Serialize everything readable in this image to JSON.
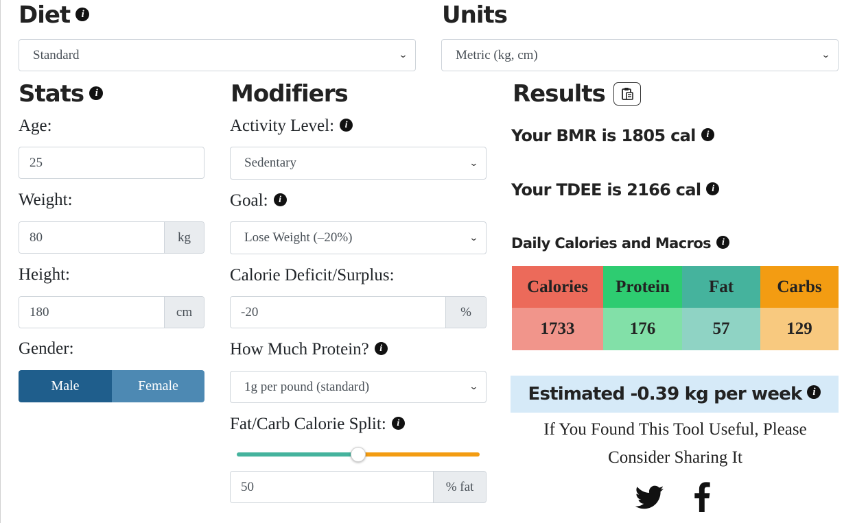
{
  "diet": {
    "title": "Diet",
    "select_value": "Standard"
  },
  "units": {
    "title": "Units",
    "select_value": "Metric (kg, cm)"
  },
  "stats": {
    "title": "Stats",
    "age_label": "Age:",
    "age_value": "25",
    "weight_label": "Weight:",
    "weight_value": "80",
    "weight_unit": "kg",
    "height_label": "Height:",
    "height_value": "180",
    "height_unit": "cm",
    "gender_label": "Gender:",
    "gender_options": [
      "Male",
      "Female"
    ],
    "gender_selected": "Male"
  },
  "modifiers": {
    "title": "Modifiers",
    "activity_label": "Activity Level:",
    "activity_value": "Sedentary",
    "goal_label": "Goal:",
    "goal_value": "Lose Weight (–20%)",
    "deficit_label": "Calorie Deficit/Surplus:",
    "deficit_value": "-20",
    "deficit_unit": "%",
    "protein_label": "How Much Protein?",
    "protein_value": "1g per pound (standard)",
    "split_label": "Fat/Carb Calorie Split:",
    "split_slider_fraction": 0.5,
    "split_value": "50",
    "split_unit": "% fat"
  },
  "results": {
    "title": "Results",
    "bmr_text": "Your BMR is 1805 cal",
    "tdee_text": "Your TDEE is 2166 cal",
    "macros_title": "Daily Calories and Macros",
    "table": {
      "headers": [
        "Calories",
        "Protein",
        "Fat",
        "Carbs"
      ],
      "values": [
        "1733",
        "176",
        "57",
        "129"
      ]
    },
    "estimate_text": "Estimated -0.39 kg per week",
    "share_line1": "If You Found This Tool Useful, Please",
    "share_line2": "Consider Sharing It"
  },
  "icons": {
    "info": "i",
    "copy": "clipboard-icon",
    "twitter": "twitter-icon",
    "facebook": "f"
  },
  "colors": {
    "primary_dark": "#1f5e8c",
    "primary_light": "#4d89b3",
    "calories_head": "#ec6a5a",
    "calories_cell": "#f1958b",
    "protein_head": "#2ecc71",
    "protein_cell": "#82e0a8",
    "fat_head": "#45b39d",
    "fat_cell": "#8fd3c4",
    "carbs_head": "#f39c12",
    "carbs_cell": "#f8c97f",
    "estimate_bg": "#d6eaf8",
    "slider_fat": "#45b39d",
    "slider_carb": "#f39c12"
  }
}
